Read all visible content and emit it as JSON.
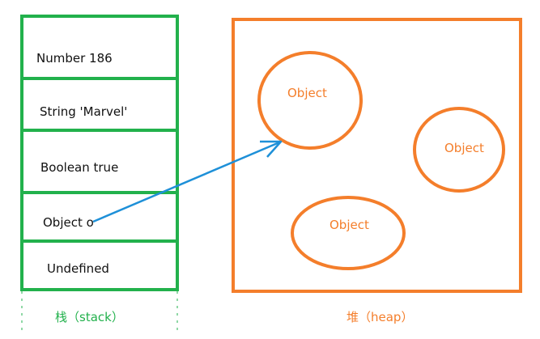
{
  "colors": {
    "stack_border": "#22b14c",
    "heap_border": "#f47e2b",
    "arrow": "#1e90d8",
    "text": "#111111"
  },
  "stack": {
    "label": "栈（stack）",
    "cells": [
      {
        "text": "Number 186"
      },
      {
        "text": "String 'Marvel'"
      },
      {
        "text": "Boolean true"
      },
      {
        "text": "Object o"
      },
      {
        "text": "Undefined"
      }
    ]
  },
  "heap": {
    "label": "堆（heap）",
    "objects": [
      {
        "text": "Object"
      },
      {
        "text": "Object"
      },
      {
        "text": "Object"
      }
    ]
  }
}
